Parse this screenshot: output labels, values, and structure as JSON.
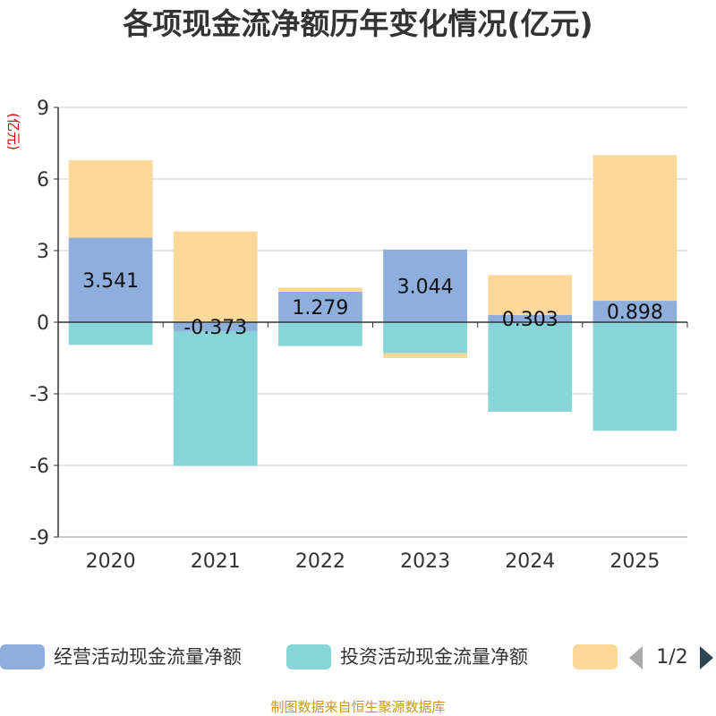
{
  "chart_data": {
    "type": "bar",
    "stacked": true,
    "title": "各项现金流净额历年变化情况(亿元)",
    "ylabel": "(亿元)",
    "xlabel": "",
    "ylim": [
      -9,
      9
    ],
    "yticks": [
      9,
      6,
      3,
      0,
      -3,
      -6,
      -9
    ],
    "categories": [
      "2020",
      "2021",
      "2022",
      "2023",
      "2024",
      "2025"
    ],
    "series": [
      {
        "name": "经营活动现金流量净额",
        "color": "#8eaedb",
        "values": [
          3.541,
          -0.373,
          1.279,
          3.044,
          0.303,
          0.898
        ],
        "labels": [
          "3.541",
          "-0.373",
          "1.279",
          "3.044",
          "0.303",
          "0.898"
        ]
      },
      {
        "name": "投资活动现金流量净额",
        "color": "#86d5d8",
        "values": [
          -0.95,
          -5.65,
          -1.0,
          -1.3,
          -3.75,
          -4.55
        ]
      },
      {
        "name": "",
        "color": "#fed898",
        "values": [
          3.25,
          3.8,
          0.17,
          -0.2,
          1.67,
          6.1
        ]
      }
    ],
    "legend": {
      "position": "bottom",
      "page": "1/2"
    }
  },
  "source": "制图数据来自恒生聚源数据库"
}
